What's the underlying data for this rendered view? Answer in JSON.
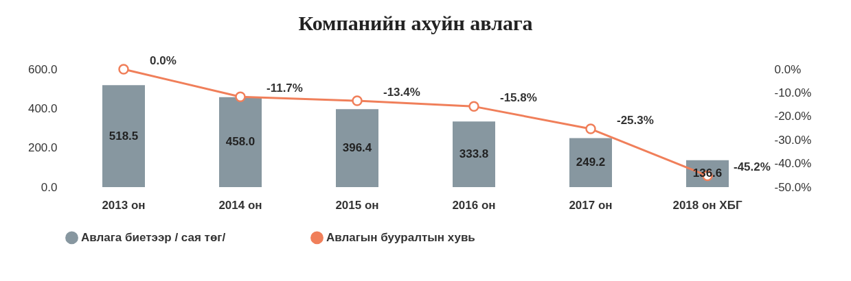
{
  "chart_data": {
    "type": "bar",
    "title": "Компанийн ахуйн авлага",
    "categories": [
      "2013 он",
      "2014 он",
      "2015 он",
      "2016 он",
      "2017 он",
      "2018 он ХБГ"
    ],
    "series": [
      {
        "name": "Авлага биетээр / сая төг/",
        "color": "#8797a0",
        "values": [
          518.5,
          458.0,
          396.4,
          333.8,
          249.2,
          136.6
        ],
        "value_labels": [
          "518.5",
          "458.0",
          "396.4",
          "333.8",
          "249.2",
          "136.6"
        ]
      },
      {
        "name": "Авлагын бууралтын хувь",
        "type": "line",
        "axis": "y2",
        "color": "#f07f5a",
        "values": [
          0.0,
          -11.7,
          -13.4,
          -15.8,
          -25.3,
          -45.2
        ],
        "value_labels": [
          "0.0%",
          "-11.7%",
          "-13.4%",
          "-15.8%",
          "-25.3%",
          "-45.2%"
        ]
      }
    ],
    "ylim": [
      0,
      600
    ],
    "yticks": [
      {
        "value": 0,
        "label": "0.0"
      },
      {
        "value": 200,
        "label": "200.0"
      },
      {
        "value": 400,
        "label": "400.0"
      },
      {
        "value": 600,
        "label": "600.0"
      }
    ],
    "y2lim": [
      -50,
      0
    ],
    "y2ticks": [
      {
        "value": -50,
        "label": "-50.0%"
      },
      {
        "value": -40,
        "label": "-40.0%"
      },
      {
        "value": -30,
        "label": "-30.0%"
      },
      {
        "value": -20,
        "label": "-20.0%"
      },
      {
        "value": -10,
        "label": "-10.0%"
      },
      {
        "value": 0,
        "label": "0.0%"
      }
    ],
    "marker": "circle",
    "legend": "bottom",
    "grid": false
  }
}
